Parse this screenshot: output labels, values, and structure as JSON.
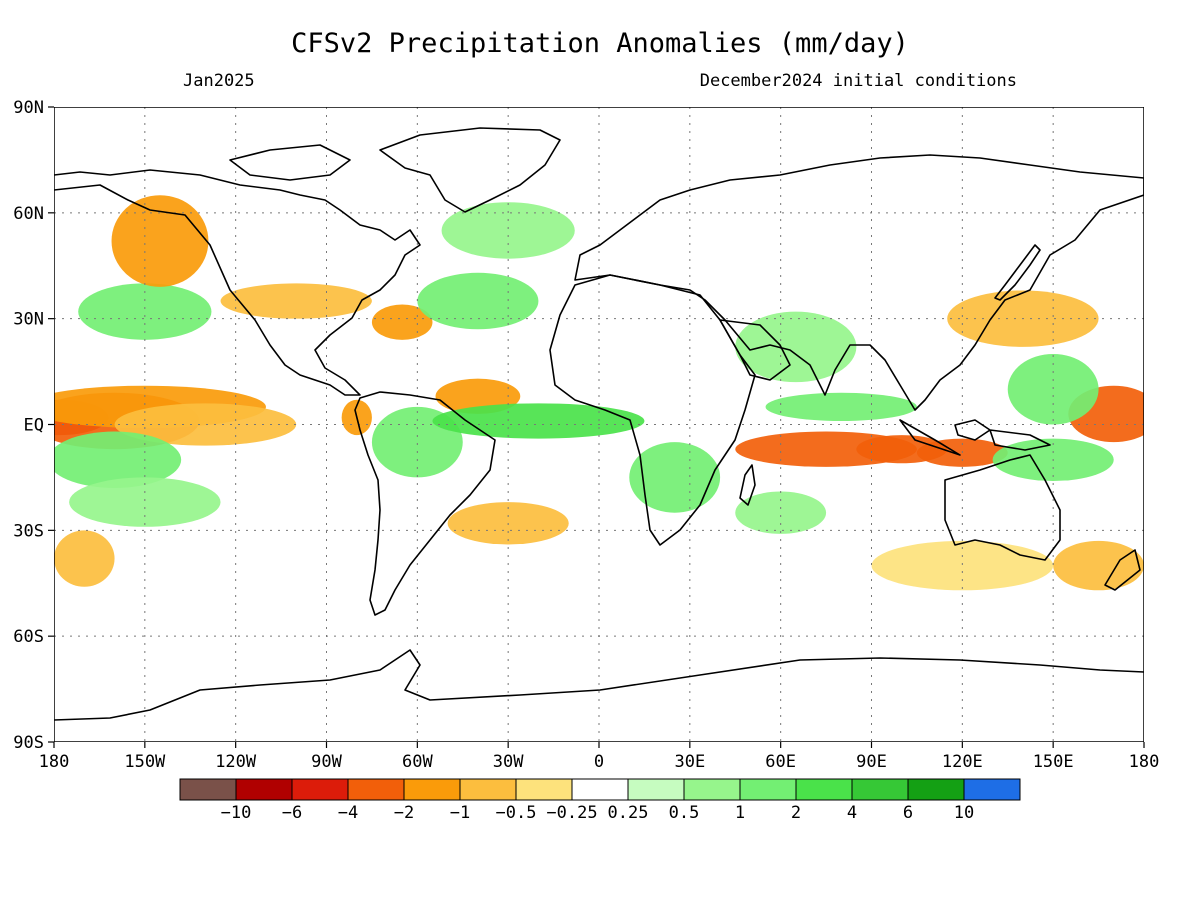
{
  "title": "CFSv2 Precipitation Anomalies (mm/day)",
  "subtitle_left": "Jan2025",
  "subtitle_right": "December2024 initial conditions",
  "chart_data": {
    "type": "heatmap",
    "title": "CFSv2 Precipitation Anomalies (mm/day)",
    "projection": "equirectangular",
    "lon_range": [
      -180,
      180
    ],
    "lat_range": [
      -90,
      90
    ],
    "x_ticks": [
      {
        "lon": -180,
        "label": "180"
      },
      {
        "lon": -150,
        "label": "150W"
      },
      {
        "lon": -120,
        "label": "120W"
      },
      {
        "lon": -90,
        "label": "90W"
      },
      {
        "lon": -60,
        "label": "60W"
      },
      {
        "lon": -30,
        "label": "30W"
      },
      {
        "lon": 0,
        "label": "0"
      },
      {
        "lon": 30,
        "label": "30E"
      },
      {
        "lon": 60,
        "label": "60E"
      },
      {
        "lon": 90,
        "label": "90E"
      },
      {
        "lon": 120,
        "label": "120E"
      },
      {
        "lon": 150,
        "label": "150E"
      },
      {
        "lon": 180,
        "label": "180"
      }
    ],
    "y_ticks": [
      {
        "lat": 90,
        "label": "90N"
      },
      {
        "lat": 60,
        "label": "60N"
      },
      {
        "lat": 30,
        "label": "30N"
      },
      {
        "lat": 0,
        "label": "EQ"
      },
      {
        "lat": -30,
        "label": "30S"
      },
      {
        "lat": -60,
        "label": "60S"
      },
      {
        "lat": -90,
        "label": "90S"
      }
    ],
    "grid": true,
    "colorbar": {
      "colors": [
        "#7a5149",
        "#b00000",
        "#dc1c0a",
        "#f25f0a",
        "#fa9b0a",
        "#fcbe3e",
        "#fde27c",
        "#ffffff",
        "#c6fcc0",
        "#96f58c",
        "#73ef73",
        "#4ae24a",
        "#36c836",
        "#14a014",
        "#1e6ee6"
      ],
      "boundaries": [
        "-10",
        "-6",
        "-4",
        "-2",
        "-1",
        "-0.5",
        "-0.25",
        "0.25",
        "0.5",
        "1",
        "2",
        "4",
        "6",
        "10"
      ]
    },
    "anomaly_regions": [
      {
        "lon": -178,
        "lat": 2,
        "rx": 16,
        "ry": 5,
        "value": -6
      },
      {
        "lon": -160,
        "lat": 1,
        "rx": 28,
        "ry": 8,
        "value": -3
      },
      {
        "lon": -150,
        "lat": 5,
        "rx": 40,
        "ry": 6,
        "value": -1.5
      },
      {
        "lon": -130,
        "lat": 0,
        "rx": 30,
        "ry": 6,
        "value": -0.7
      },
      {
        "lon": -150,
        "lat": 32,
        "rx": 22,
        "ry": 8,
        "value": 1.5
      },
      {
        "lon": -145,
        "lat": 52,
        "rx": 16,
        "ry": 13,
        "value": -1.5
      },
      {
        "lon": -160,
        "lat": -10,
        "rx": 22,
        "ry": 8,
        "value": 1.5
      },
      {
        "lon": -150,
        "lat": -22,
        "rx": 25,
        "ry": 7,
        "value": 0.8
      },
      {
        "lon": -170,
        "lat": -38,
        "rx": 10,
        "ry": 8,
        "value": -1
      },
      {
        "lon": -100,
        "lat": 35,
        "rx": 25,
        "ry": 5,
        "value": -0.7
      },
      {
        "lon": -65,
        "lat": 29,
        "rx": 10,
        "ry": 5,
        "value": -1.5
      },
      {
        "lon": -40,
        "lat": 8,
        "rx": 14,
        "ry": 5,
        "value": -2
      },
      {
        "lon": -80,
        "lat": 2,
        "rx": 5,
        "ry": 5,
        "value": -1.5
      },
      {
        "lon": -60,
        "lat": -5,
        "rx": 15,
        "ry": 10,
        "value": 1
      },
      {
        "lon": -20,
        "lat": 1,
        "rx": 35,
        "ry": 5,
        "value": 2
      },
      {
        "lon": -30,
        "lat": -28,
        "rx": 20,
        "ry": 6,
        "value": -0.7
      },
      {
        "lon": -40,
        "lat": 35,
        "rx": 20,
        "ry": 8,
        "value": 1
      },
      {
        "lon": -30,
        "lat": 55,
        "rx": 22,
        "ry": 8,
        "value": 0.8
      },
      {
        "lon": 25,
        "lat": -15,
        "rx": 15,
        "ry": 10,
        "value": 1
      },
      {
        "lon": 75,
        "lat": -7,
        "rx": 30,
        "ry": 5,
        "value": -3
      },
      {
        "lon": 100,
        "lat": -7,
        "rx": 15,
        "ry": 4,
        "value": -4
      },
      {
        "lon": 120,
        "lat": -8,
        "rx": 15,
        "ry": 4,
        "value": -3
      },
      {
        "lon": 80,
        "lat": 5,
        "rx": 25,
        "ry": 4,
        "value": 1
      },
      {
        "lon": 140,
        "lat": 30,
        "rx": 25,
        "ry": 8,
        "value": -1
      },
      {
        "lon": 170,
        "lat": 3,
        "rx": 15,
        "ry": 8,
        "value": -4
      },
      {
        "lon": 150,
        "lat": 10,
        "rx": 15,
        "ry": 10,
        "value": 1.5
      },
      {
        "lon": 150,
        "lat": -10,
        "rx": 20,
        "ry": 6,
        "value": 1
      },
      {
        "lon": 120,
        "lat": -40,
        "rx": 30,
        "ry": 7,
        "value": -0.5
      },
      {
        "lon": 165,
        "lat": -40,
        "rx": 15,
        "ry": 7,
        "value": -1
      },
      {
        "lon": 65,
        "lat": 22,
        "rx": 20,
        "ry": 10,
        "value": 0.7
      },
      {
        "lon": 60,
        "lat": -25,
        "rx": 15,
        "ry": 6,
        "value": 0.6
      }
    ]
  }
}
